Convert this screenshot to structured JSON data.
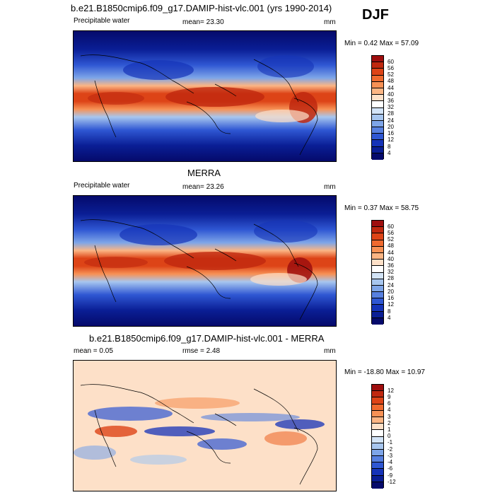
{
  "season": "DJF",
  "panels": [
    {
      "title": "b.e21.B1850cmip6.f09_g17.DAMIP-hist-vlc.001 (yrs 1990-2014)",
      "left_label": "Precipitable water",
      "center_label": "mean=  23.30",
      "units": "mm",
      "minmax": "Min =   0.42 Max =  57.09",
      "colorbar": {
        "labels": [
          "60",
          "56",
          "52",
          "48",
          "44",
          "40",
          "36",
          "32",
          "28",
          "24",
          "20",
          "16",
          "12",
          "8",
          "4"
        ],
        "colors": [
          "#9e0e0e",
          "#c0280f",
          "#dd4417",
          "#ef6a2f",
          "#f79155",
          "#fbb584",
          "#fde0c8",
          "#ffffff",
          "#d3e4f7",
          "#a7c6ef",
          "#7ea5e8",
          "#5780e0",
          "#2f57d3",
          "#1533b8",
          "#0a1e95",
          "#050a6b"
        ]
      }
    },
    {
      "title": "MERRA",
      "left_label": "Precipitable water",
      "center_label": "mean=  23.26",
      "units": "mm",
      "minmax": "Min =   0.37 Max =  58.75",
      "colorbar": {
        "labels": [
          "60",
          "56",
          "52",
          "48",
          "44",
          "40",
          "36",
          "32",
          "28",
          "24",
          "20",
          "16",
          "12",
          "8",
          "4"
        ],
        "colors": [
          "#9e0e0e",
          "#c0280f",
          "#dd4417",
          "#ef6a2f",
          "#f79155",
          "#fbb584",
          "#fde0c8",
          "#ffffff",
          "#d3e4f7",
          "#a7c6ef",
          "#7ea5e8",
          "#5780e0",
          "#2f57d3",
          "#1533b8",
          "#0a1e95",
          "#050a6b"
        ]
      }
    },
    {
      "title": "b.e21.B1850cmip6.f09_g17.DAMIP-hist-vlc.001 - MERRA",
      "left_label": "mean =   0.05",
      "center_label": "rmse =   2.48",
      "units": "mm",
      "minmax": "Min = -18.80 Max =  10.97",
      "colorbar": {
        "labels": [
          "12",
          "9",
          "6",
          "4",
          "3",
          "2",
          "1",
          "0",
          "-1",
          "-2",
          "-3",
          "-4",
          "-6",
          "-9",
          "-12"
        ],
        "colors": [
          "#9e0e0e",
          "#c0280f",
          "#dd4417",
          "#ef6a2f",
          "#f79155",
          "#fbb584",
          "#fde0c8",
          "#ffffff",
          "#d3e4f7",
          "#a7c6ef",
          "#7ea5e8",
          "#5780e0",
          "#2f57d3",
          "#1533b8",
          "#0a1e95",
          "#050a6b"
        ]
      }
    }
  ]
}
